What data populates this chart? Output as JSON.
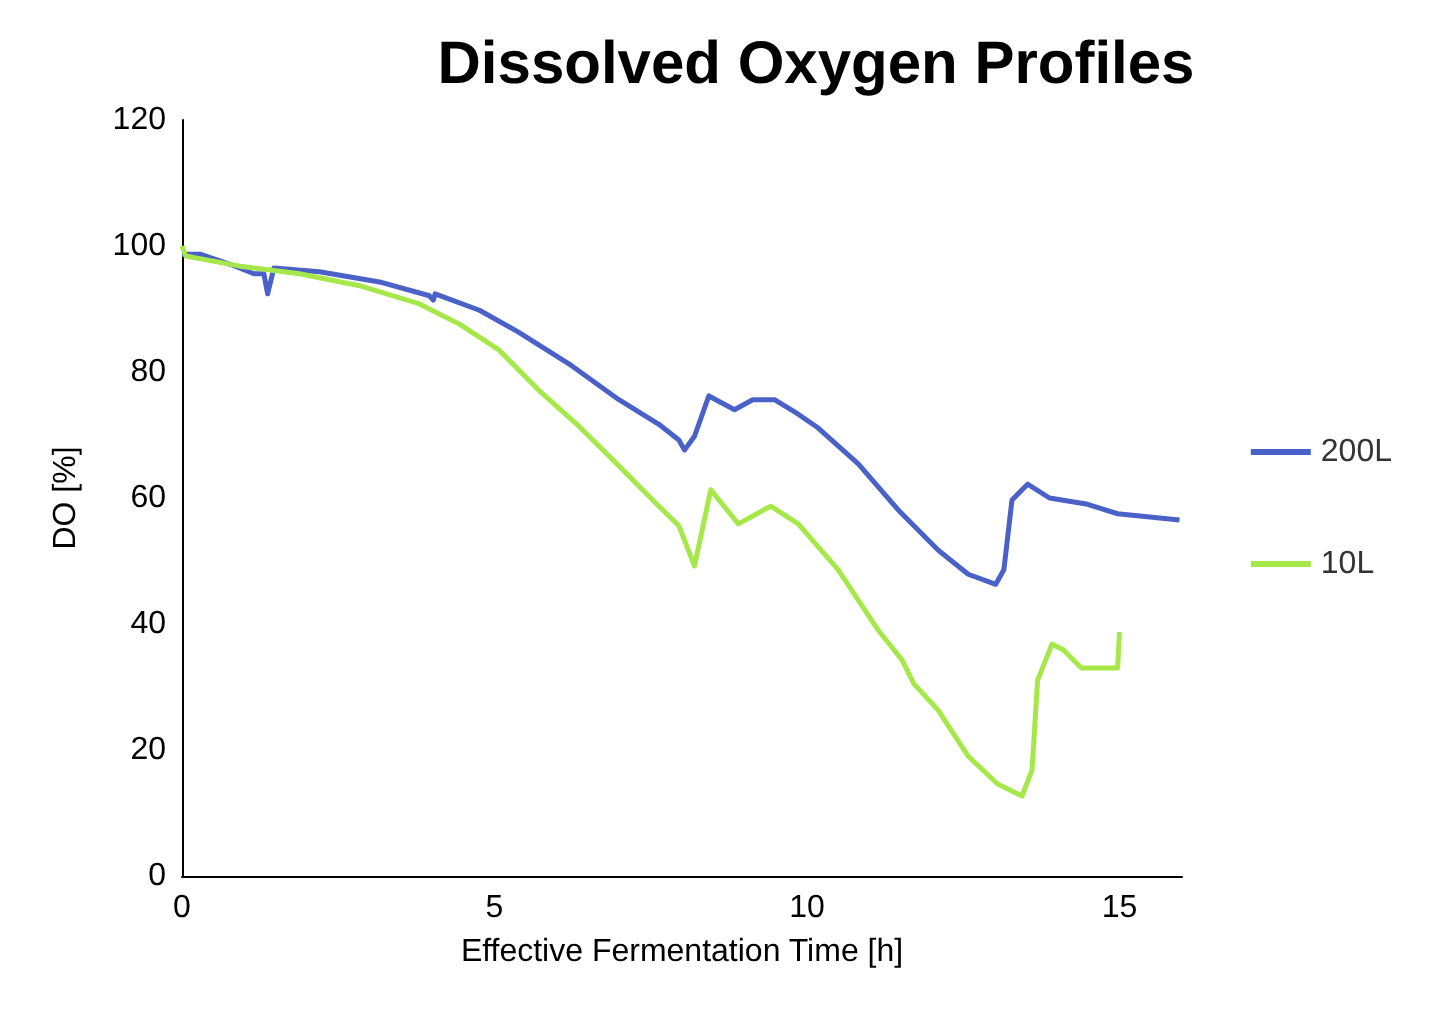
{
  "chart_data": {
    "type": "line",
    "title": "Dissolved Oxygen Profiles",
    "xlabel": "Effective Fermentation Time [h]",
    "ylabel": "DO [%]",
    "xlim": [
      0,
      16
    ],
    "xticks": [
      0,
      5,
      10,
      15
    ],
    "ylim": [
      0,
      120
    ],
    "yticks": [
      0,
      20,
      40,
      60,
      80,
      100,
      120
    ],
    "grid": false,
    "legend": "right",
    "marker": "none",
    "line_style": "solid",
    "series": [
      {
        "name": "200L",
        "color": "#4a62c8",
        "x": [
          0,
          0.29,
          0.77,
          1.15,
          1.31,
          1.37,
          1.47,
          2.2,
          3.16,
          3.96,
          4.02,
          4.05,
          4.76,
          5.39,
          6.19,
          6.99,
          7.63,
          7.95,
          8.04,
          8.2,
          8.43,
          8.84,
          9.13,
          9.48,
          9.86,
          10.18,
          10.82,
          11.46,
          12.1,
          12.58,
          13.02,
          13.15,
          13.28,
          13.53,
          13.88,
          14.49,
          14.97,
          15.96
        ],
        "values": [
          98.7,
          98.7,
          97.1,
          95.6,
          95.6,
          92.4,
          96.5,
          95.9,
          94.3,
          92.1,
          91.4,
          92.4,
          89.8,
          86.3,
          81.3,
          75.6,
          71.7,
          69.2,
          67.6,
          69.8,
          76.2,
          74,
          75.6,
          75.6,
          73.3,
          71.1,
          65.4,
          58.1,
          51.7,
          47.9,
          46.3,
          48.6,
          59.7,
          62.2,
          60,
          59,
          57.5,
          56.5
        ]
      },
      {
        "name": "10L",
        "color": "#a6e84a",
        "x": [
          0,
          0.06,
          0.93,
          1.88,
          2.84,
          3.8,
          4.44,
          5.07,
          5.71,
          6.35,
          6.99,
          7.63,
          7.95,
          8.2,
          8.46,
          8.9,
          9.42,
          9.86,
          10.5,
          11.14,
          11.52,
          11.71,
          12.1,
          12.58,
          13.05,
          13.44,
          13.6,
          13.69,
          13.92,
          14.1,
          14.39,
          14.75,
          14.97,
          15
        ],
        "values": [
          100,
          98.4,
          96.8,
          95.6,
          93.7,
          90.8,
          87.6,
          83.5,
          77.1,
          71.4,
          65.1,
          58.7,
          55.6,
          49.2,
          61.3,
          55.9,
          58.7,
          55.9,
          48.6,
          39,
          34.3,
          30.5,
          26.3,
          19,
          14.6,
          12.7,
          16.8,
          31.1,
          36.8,
          35.9,
          33,
          33,
          33,
          38.7
        ]
      }
    ]
  }
}
